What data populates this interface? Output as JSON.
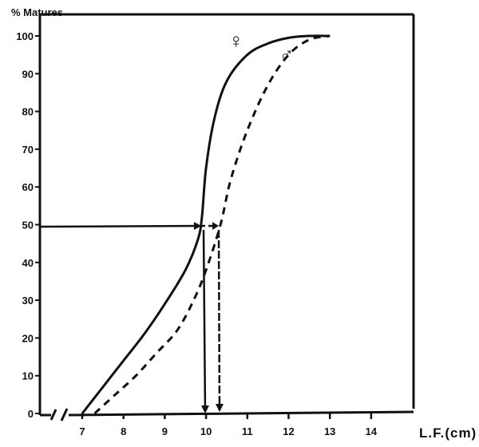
{
  "chart_data": {
    "type": "line",
    "title": "",
    "ylabel": "% Matures",
    "xlabel": "L.F.(cm)",
    "xlim": [
      7,
      14.5
    ],
    "ylim": [
      0,
      100
    ],
    "x_ticks": [
      "7",
      "8",
      "9",
      "10",
      "11",
      "12",
      "13",
      "14"
    ],
    "y_ticks": [
      "0",
      "10",
      "20",
      "30",
      "40",
      "50",
      "60",
      "70",
      "80",
      "90",
      "100"
    ],
    "grid": false,
    "legend": "symbols on curves (♀ female solid, ♂ male dashed)",
    "axis_break": "broken x-axis between 0 and 7",
    "series": [
      {
        "name": "♀",
        "style": "solid",
        "x": [
          7.0,
          7.5,
          8.0,
          8.5,
          9.0,
          9.5,
          9.8,
          9.9,
          10.0,
          10.2,
          10.5,
          11.0,
          11.5,
          12.0,
          12.5,
          13.0
        ],
        "values": [
          0,
          7,
          14,
          21,
          29,
          38,
          46,
          52,
          65,
          78,
          88,
          95,
          98,
          99.5,
          100,
          100
        ]
      },
      {
        "name": "♂",
        "style": "dashed",
        "x": [
          7.3,
          7.8,
          8.3,
          8.8,
          9.3,
          9.7,
          10.0,
          10.35,
          10.6,
          11.0,
          11.5,
          12.0,
          12.5,
          13.0
        ],
        "values": [
          0,
          5,
          10,
          16,
          22,
          30,
          38,
          50,
          62,
          75,
          87,
          95,
          99,
          100
        ]
      }
    ],
    "annotations": [
      {
        "text": "50% line to ♀ curve",
        "y": 50,
        "x_end": 9.9
      },
      {
        "text": "L50 ♀ drop line",
        "x": 9.95
      },
      {
        "text": "L50 ♂ drop line",
        "x": 10.35
      }
    ]
  },
  "labels": {
    "y_title": "% Matures",
    "x_title": "L.F.(cm)",
    "female_symbol": "♀",
    "male_symbol": "♂"
  }
}
